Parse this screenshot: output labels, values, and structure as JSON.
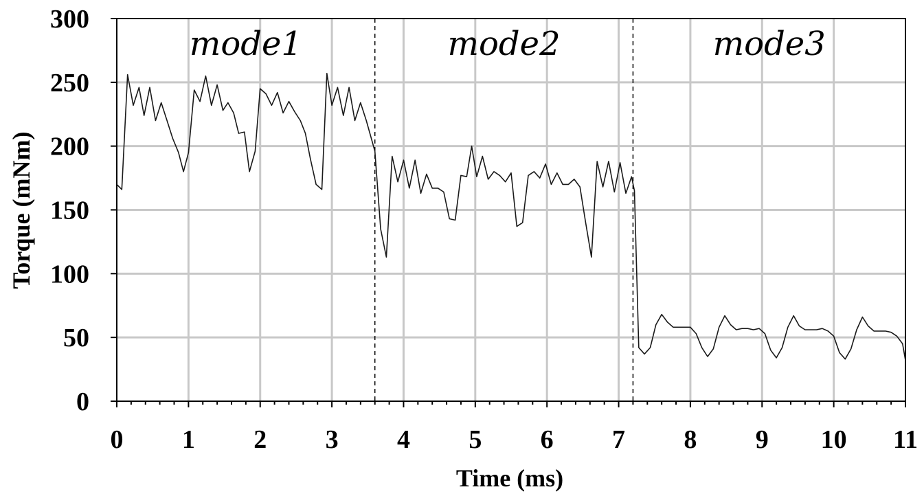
{
  "chart_data": {
    "type": "line",
    "xlabel": "Time (ms)",
    "ylabel": "Torque (mNm)",
    "xlim": [
      0,
      11
    ],
    "ylim": [
      0,
      300
    ],
    "xticks": [
      0,
      1,
      2,
      3,
      4,
      5,
      6,
      7,
      8,
      9,
      10,
      11
    ],
    "yticks": [
      0,
      50,
      100,
      150,
      200,
      250,
      300
    ],
    "x_minor_step": 0.2,
    "grid": true,
    "legend": "none",
    "line_color": "#1a1a1a",
    "grid_color": "#c8c8c8",
    "mode_boundaries": [
      3.6,
      7.2
    ],
    "mode_labels": [
      {
        "text": "mode1",
        "x": 1.8
      },
      {
        "text": "mode2",
        "x": 5.4
      },
      {
        "text": "mode3",
        "x": 9.1
      }
    ],
    "series": [
      {
        "x": [
          0.0,
          0.07,
          0.15,
          0.23,
          0.31,
          0.38,
          0.46,
          0.54,
          0.62,
          0.7,
          0.78,
          0.86,
          0.93,
          1.0,
          1.08,
          1.16,
          1.24,
          1.32,
          1.4,
          1.48,
          1.55,
          1.63,
          1.7,
          1.78,
          1.85,
          1.93,
          2.0,
          2.08,
          2.16,
          2.24,
          2.32,
          2.4,
          2.48,
          2.56,
          2.63,
          2.7,
          2.78,
          2.86,
          2.93,
          3.0,
          3.08,
          3.16,
          3.24,
          3.32,
          3.4,
          3.48,
          3.55,
          3.6,
          3.68,
          3.76,
          3.84,
          3.92,
          4.0,
          4.08,
          4.16,
          4.24,
          4.32,
          4.4,
          4.48,
          4.56,
          4.64,
          4.72,
          4.8,
          4.88,
          4.95,
          5.02,
          5.1,
          5.18,
          5.26,
          5.34,
          5.42,
          5.5,
          5.58,
          5.66,
          5.74,
          5.82,
          5.9,
          5.98,
          6.06,
          6.14,
          6.22,
          6.3,
          6.38,
          6.46,
          6.54,
          6.62,
          6.7,
          6.78,
          6.86,
          6.94,
          7.02,
          7.1,
          7.18,
          7.22,
          7.28,
          7.36,
          7.44,
          7.52,
          7.6,
          7.68,
          7.76,
          7.84,
          7.92,
          8.0,
          8.08,
          8.16,
          8.24,
          8.32,
          8.4,
          8.48,
          8.56,
          8.64,
          8.72,
          8.8,
          8.88,
          8.96,
          9.04,
          9.12,
          9.2,
          9.28,
          9.36,
          9.44,
          9.52,
          9.6,
          9.68,
          9.76,
          9.84,
          9.92,
          10.0,
          10.08,
          10.16,
          10.24,
          10.32,
          10.4,
          10.48,
          10.56,
          10.64,
          10.72,
          10.8,
          10.88,
          10.96,
          11.0
        ],
        "y": [
          170,
          166,
          256,
          232,
          246,
          224,
          246,
          220,
          234,
          220,
          206,
          195,
          180,
          195,
          244,
          235,
          255,
          232,
          248,
          228,
          234,
          226,
          210,
          211,
          180,
          196,
          245,
          241,
          232,
          242,
          226,
          235,
          227,
          220,
          210,
          190,
          170,
          166,
          257,
          232,
          246,
          224,
          246,
          220,
          234,
          220,
          206,
          196,
          135,
          113,
          192,
          172,
          189,
          167,
          189,
          163,
          178,
          167,
          167,
          164,
          143,
          142,
          177,
          176,
          200,
          176,
          192,
          174,
          180,
          177,
          172,
          179,
          137,
          140,
          177,
          180,
          175,
          186,
          170,
          179,
          170,
          170,
          174,
          168,
          140,
          113,
          188,
          168,
          188,
          164,
          187,
          163,
          176,
          165,
          42,
          37,
          42,
          60,
          68,
          62,
          58,
          58,
          58,
          58,
          53,
          42,
          35,
          41,
          58,
          67,
          60,
          56,
          57,
          57,
          56,
          57,
          53,
          40,
          34,
          42,
          58,
          67,
          59,
          56,
          56,
          56,
          57,
          55,
          51,
          38,
          33,
          41,
          56,
          66,
          59,
          55,
          55,
          55,
          54,
          51,
          45,
          32
        ]
      }
    ]
  }
}
